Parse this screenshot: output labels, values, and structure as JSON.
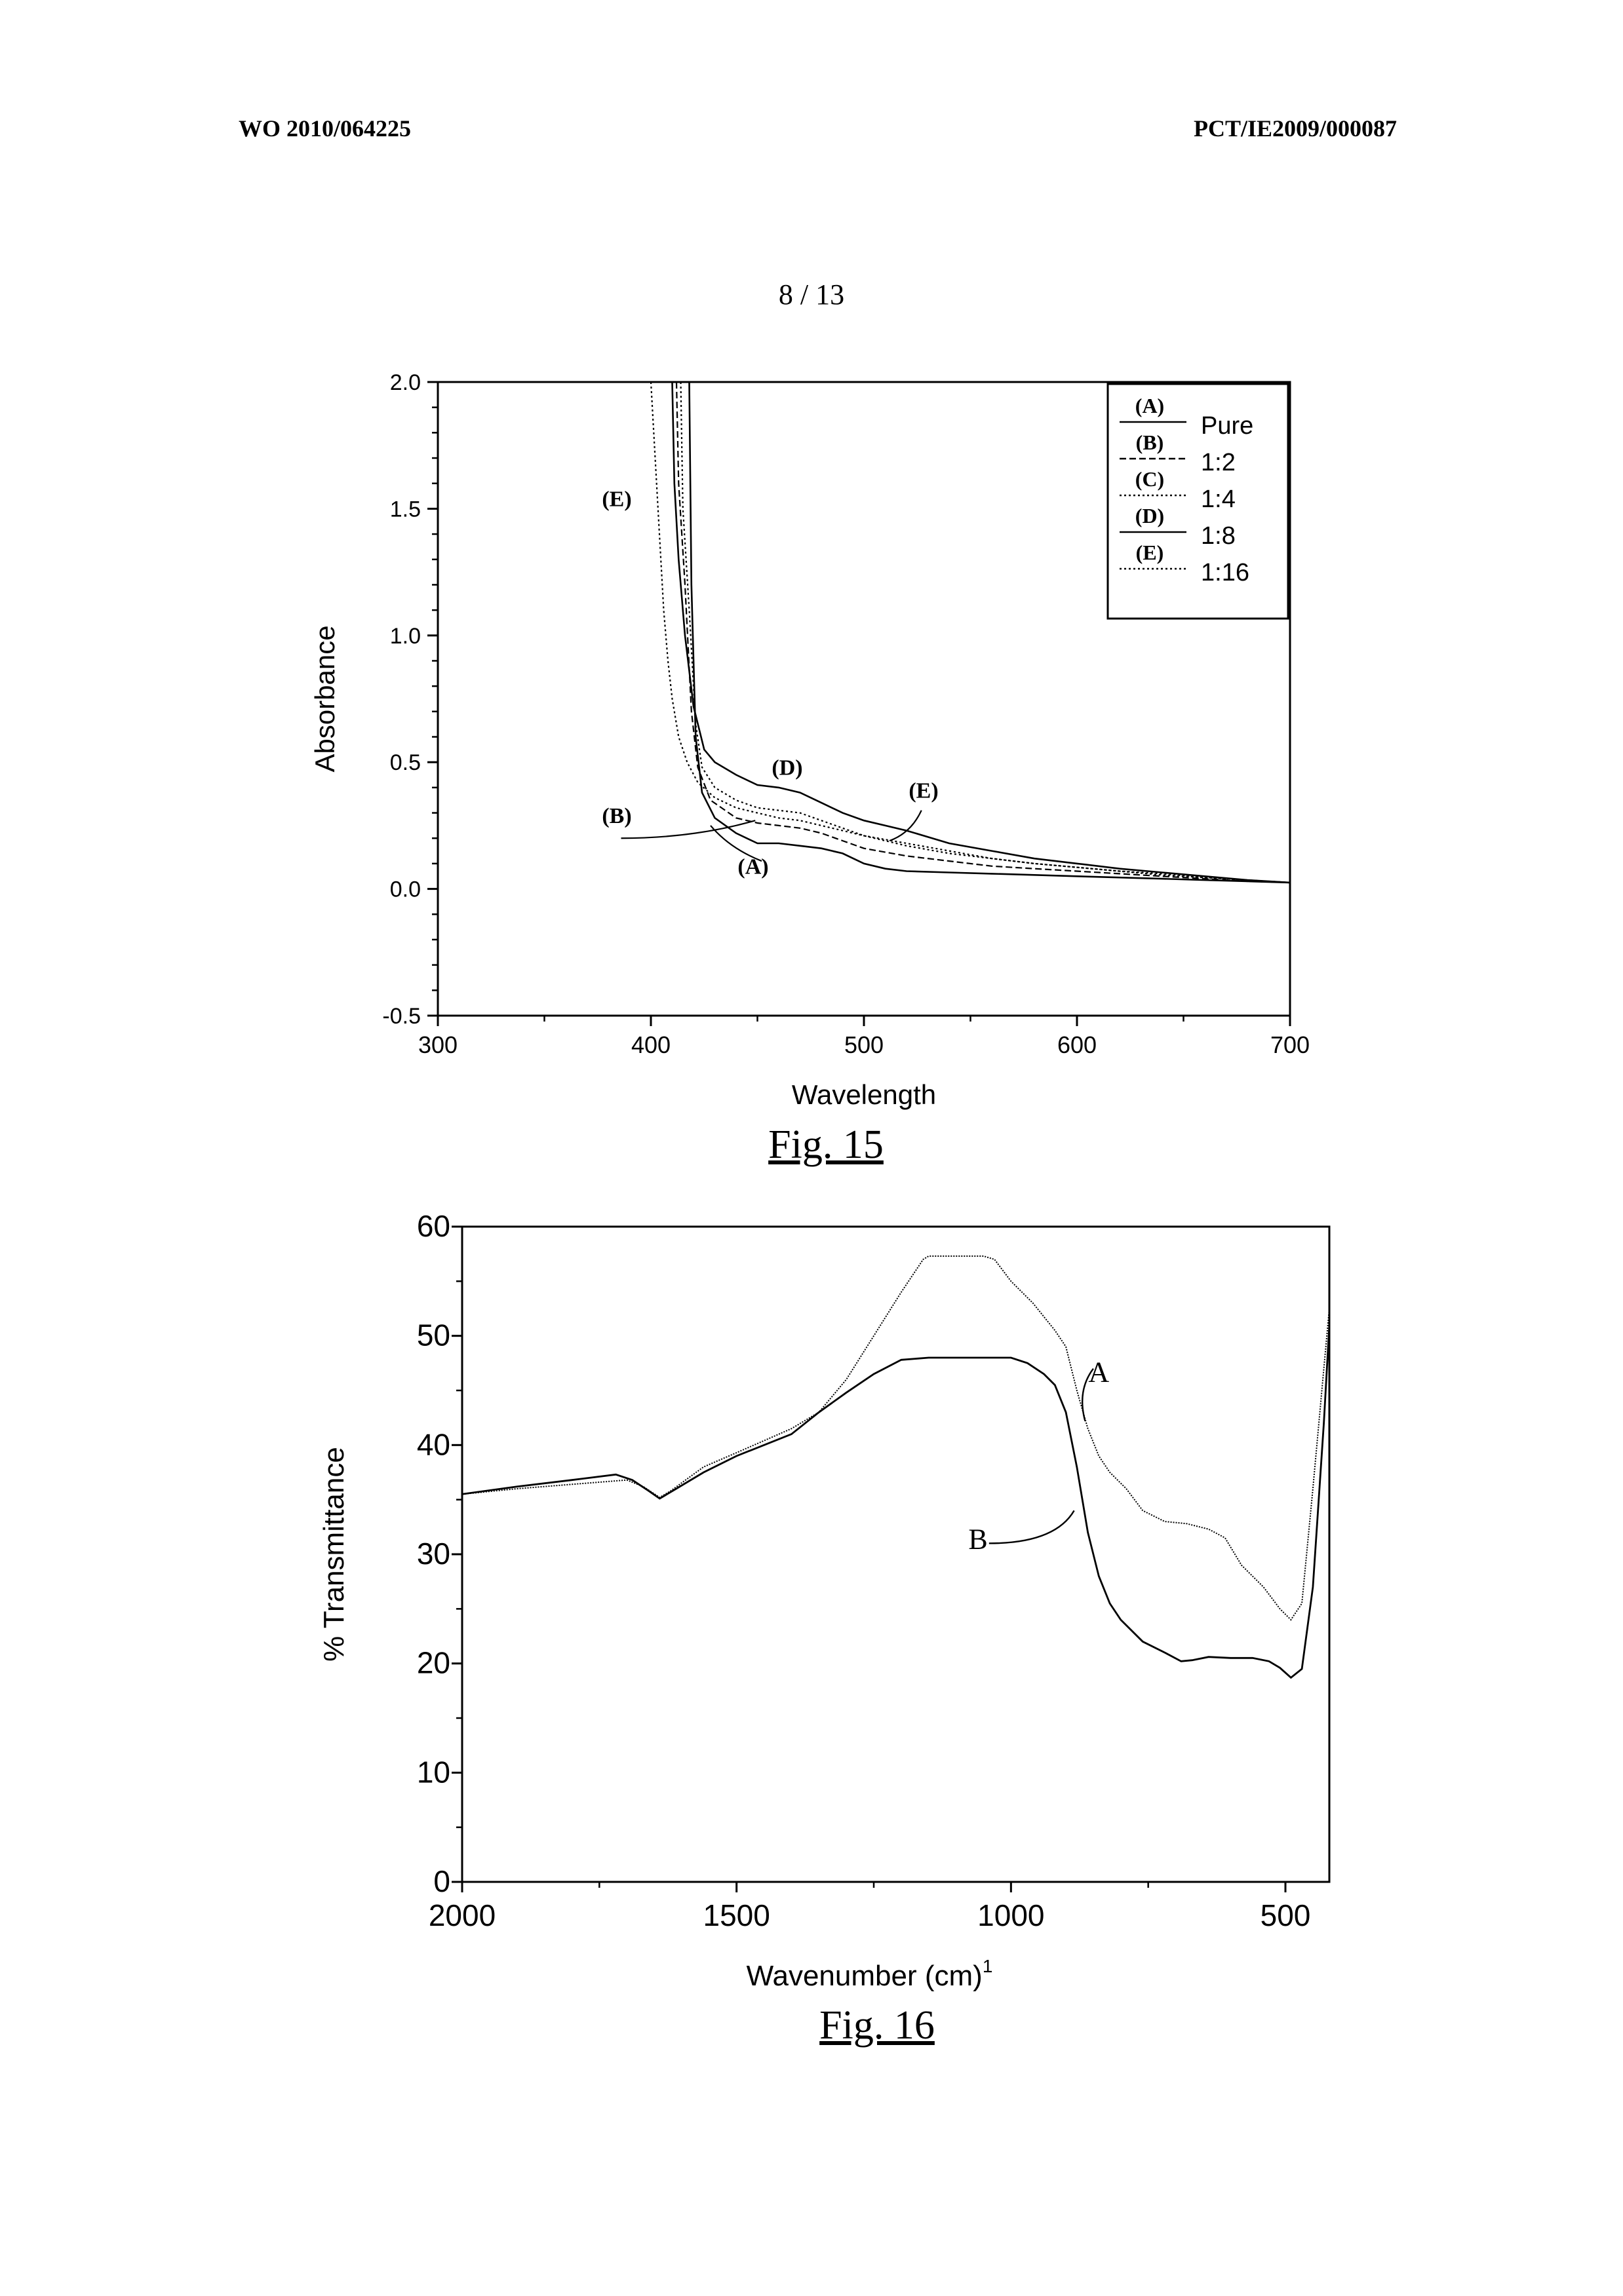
{
  "header": {
    "left": "WO 2010/064225",
    "right": "PCT/IE2009/000087",
    "page_number": "8 / 13"
  },
  "figures": {
    "fig15_caption": "Fig. 15",
    "fig16_caption": "Fig. 16"
  },
  "chart_data": [
    {
      "type": "line",
      "title": "",
      "xlabel": "Wavelength",
      "ylabel": "Absorbance",
      "xlim": [
        300,
        700
      ],
      "ylim": [
        -0.5,
        2.0
      ],
      "x_ticks": [
        "300",
        "400",
        "500",
        "600",
        "700"
      ],
      "y_ticks": [
        "-0.5",
        "0.0",
        "0.5",
        "1.0",
        "1.5",
        "2.0"
      ],
      "legend_position": "top-right",
      "legend": [
        {
          "key": "(A)",
          "label": "Pure",
          "style": "solid"
        },
        {
          "key": "(B)",
          "label": "1:2",
          "style": "dashed"
        },
        {
          "key": "(C)",
          "label": "1:4",
          "style": "dotted"
        },
        {
          "key": "(D)",
          "label": "1:8",
          "style": "solid"
        },
        {
          "key": "(E)",
          "label": "1:16",
          "style": "dotted"
        }
      ],
      "series": [
        {
          "name": "(A)",
          "style": "solid",
          "points": [
            [
              418,
              2.0
            ],
            [
              419,
              1.2
            ],
            [
              421,
              0.6
            ],
            [
              424,
              0.38
            ],
            [
              430,
              0.28
            ],
            [
              440,
              0.22
            ],
            [
              450,
              0.18
            ],
            [
              460,
              0.18
            ],
            [
              470,
              0.17
            ],
            [
              480,
              0.16
            ],
            [
              490,
              0.14
            ],
            [
              500,
              0.1
            ],
            [
              510,
              0.08
            ],
            [
              520,
              0.07
            ],
            [
              540,
              0.065
            ],
            [
              560,
              0.06
            ],
            [
              580,
              0.055
            ],
            [
              600,
              0.05
            ],
            [
              620,
              0.045
            ],
            [
              640,
              0.04
            ],
            [
              660,
              0.035
            ],
            [
              680,
              0.03
            ],
            [
              700,
              0.025
            ]
          ]
        },
        {
          "name": "(B)",
          "style": "dashed",
          "points": [
            [
              412,
              2.0
            ],
            [
              413,
              1.6
            ],
            [
              416,
              1.2
            ],
            [
              419,
              0.7
            ],
            [
              422,
              0.48
            ],
            [
              428,
              0.35
            ],
            [
              440,
              0.28
            ],
            [
              450,
              0.26
            ],
            [
              460,
              0.25
            ],
            [
              470,
              0.24
            ],
            [
              480,
              0.22
            ],
            [
              490,
              0.19
            ],
            [
              500,
              0.16
            ],
            [
              520,
              0.13
            ],
            [
              540,
              0.11
            ],
            [
              560,
              0.09
            ],
            [
              580,
              0.08
            ],
            [
              600,
              0.07
            ],
            [
              620,
              0.06
            ],
            [
              640,
              0.05
            ],
            [
              660,
              0.04
            ],
            [
              680,
              0.03
            ],
            [
              700,
              0.025
            ]
          ]
        },
        {
          "name": "(C)",
          "style": "dotted",
          "points": [
            [
              414,
              2.0
            ],
            [
              415,
              1.5
            ],
            [
              418,
              1.1
            ],
            [
              421,
              0.65
            ],
            [
              424,
              0.48
            ],
            [
              430,
              0.4
            ],
            [
              440,
              0.35
            ],
            [
              450,
              0.32
            ],
            [
              460,
              0.31
            ],
            [
              470,
              0.3
            ],
            [
              480,
              0.27
            ],
            [
              490,
              0.24
            ],
            [
              500,
              0.21
            ],
            [
              520,
              0.17
            ],
            [
              540,
              0.14
            ],
            [
              560,
              0.12
            ],
            [
              580,
              0.1
            ],
            [
              600,
              0.085
            ],
            [
              620,
              0.07
            ],
            [
              640,
              0.06
            ],
            [
              660,
              0.045
            ],
            [
              680,
              0.035
            ],
            [
              700,
              0.025
            ]
          ]
        },
        {
          "name": "(D)",
          "style": "solid",
          "points": [
            [
              410,
              2.0
            ],
            [
              411,
              1.6
            ],
            [
              413,
              1.3
            ],
            [
              416,
              1.0
            ],
            [
              420,
              0.72
            ],
            [
              425,
              0.55
            ],
            [
              430,
              0.5
            ],
            [
              440,
              0.45
            ],
            [
              450,
              0.41
            ],
            [
              460,
              0.4
            ],
            [
              470,
              0.38
            ],
            [
              480,
              0.34
            ],
            [
              490,
              0.3
            ],
            [
              500,
              0.27
            ],
            [
              510,
              0.25
            ],
            [
              520,
              0.23
            ],
            [
              540,
              0.18
            ],
            [
              560,
              0.15
            ],
            [
              580,
              0.12
            ],
            [
              600,
              0.1
            ],
            [
              620,
              0.08
            ],
            [
              640,
              0.065
            ],
            [
              660,
              0.05
            ],
            [
              680,
              0.035
            ],
            [
              700,
              0.025
            ]
          ]
        },
        {
          "name": "(E)",
          "style": "dotted",
          "points": [
            [
              400,
              2.0
            ],
            [
              402,
              1.7
            ],
            [
              404,
              1.4
            ],
            [
              406,
              1.1
            ],
            [
              408,
              0.9
            ],
            [
              410,
              0.75
            ],
            [
              413,
              0.6
            ],
            [
              417,
              0.5
            ],
            [
              422,
              0.42
            ],
            [
              430,
              0.36
            ],
            [
              440,
              0.32
            ],
            [
              450,
              0.3
            ],
            [
              460,
              0.28
            ],
            [
              470,
              0.27
            ],
            [
              480,
              0.25
            ],
            [
              490,
              0.23
            ],
            [
              500,
              0.21
            ],
            [
              520,
              0.18
            ],
            [
              540,
              0.15
            ],
            [
              560,
              0.12
            ],
            [
              580,
              0.1
            ],
            [
              600,
              0.085
            ],
            [
              620,
              0.07
            ],
            [
              640,
              0.055
            ],
            [
              660,
              0.045
            ],
            [
              680,
              0.035
            ],
            [
              700,
              0.025
            ]
          ]
        }
      ],
      "annotations": [
        {
          "text": "(E)",
          "x": 384,
          "y": 1.51
        },
        {
          "text": "(D)",
          "x": 464,
          "y": 0.45
        },
        {
          "text": "(E)",
          "x": 528,
          "y": 0.36
        },
        {
          "text": "(B)",
          "x": 384,
          "y": 0.26
        },
        {
          "text": "(A)",
          "x": 448,
          "y": 0.06
        }
      ]
    },
    {
      "type": "line",
      "title": "",
      "xlabel": "Wavenumber (cm)",
      "xlabel_sup": "1",
      "ylabel": "% Transmittance",
      "xlim": [
        2000,
        420
      ],
      "ylim": [
        0,
        60
      ],
      "x_ticks": [
        "2000",
        "1500",
        "1000",
        "500"
      ],
      "y_ticks": [
        "0",
        "10",
        "20",
        "30",
        "40",
        "50",
        "60"
      ],
      "series": [
        {
          "name": "A",
          "points": [
            [
              2000,
              35.5
            ],
            [
              1900,
              36
            ],
            [
              1800,
              36.4
            ],
            [
              1700,
              36.8
            ],
            [
              1670,
              36.2
            ],
            [
              1640,
              35.2
            ],
            [
              1620,
              35.8
            ],
            [
              1560,
              38
            ],
            [
              1500,
              39.3
            ],
            [
              1400,
              41.5
            ],
            [
              1350,
              43
            ],
            [
              1300,
              46
            ],
            [
              1250,
              50
            ],
            [
              1200,
              54
            ],
            [
              1160,
              57
            ],
            [
              1150,
              57.3
            ],
            [
              1050,
              57.3
            ],
            [
              1030,
              57
            ],
            [
              1000,
              55
            ],
            [
              960,
              53
            ],
            [
              920,
              50.5
            ],
            [
              900,
              49
            ],
            [
              880,
              45
            ],
            [
              860,
              41.5
            ],
            [
              840,
              39
            ],
            [
              820,
              37.5
            ],
            [
              790,
              36
            ],
            [
              760,
              34
            ],
            [
              720,
              33
            ],
            [
              680,
              32.8
            ],
            [
              640,
              32.3
            ],
            [
              610,
              31.5
            ],
            [
              580,
              29
            ],
            [
              540,
              27
            ],
            [
              510,
              25
            ],
            [
              490,
              24
            ],
            [
              470,
              25.5
            ],
            [
              450,
              36
            ],
            [
              430,
              47
            ],
            [
              420,
              52.5
            ]
          ]
        },
        {
          "name": "B",
          "points": [
            [
              2000,
              35.5
            ],
            [
              1900,
              36.2
            ],
            [
              1800,
              36.8
            ],
            [
              1720,
              37.3
            ],
            [
              1690,
              36.8
            ],
            [
              1660,
              35.8
            ],
            [
              1640,
              35.1
            ],
            [
              1610,
              36
            ],
            [
              1560,
              37.5
            ],
            [
              1500,
              39
            ],
            [
              1400,
              41
            ],
            [
              1350,
              43
            ],
            [
              1300,
              44.8
            ],
            [
              1250,
              46.5
            ],
            [
              1200,
              47.8
            ],
            [
              1150,
              48
            ],
            [
              1000,
              48
            ],
            [
              970,
              47.5
            ],
            [
              940,
              46.5
            ],
            [
              920,
              45.5
            ],
            [
              900,
              43
            ],
            [
              880,
              38
            ],
            [
              860,
              32
            ],
            [
              840,
              28
            ],
            [
              820,
              25.5
            ],
            [
              800,
              24
            ],
            [
              760,
              22
            ],
            [
              720,
              21
            ],
            [
              690,
              20.2
            ],
            [
              670,
              20.3
            ],
            [
              640,
              20.6
            ],
            [
              600,
              20.5
            ],
            [
              560,
              20.5
            ],
            [
              530,
              20.2
            ],
            [
              510,
              19.6
            ],
            [
              490,
              18.7
            ],
            [
              470,
              19.5
            ],
            [
              450,
              27
            ],
            [
              430,
              42
            ],
            [
              420,
              51
            ]
          ]
        }
      ],
      "annotations": [
        {
          "text": "A",
          "x": 840,
          "y": 45.8
        },
        {
          "text": "B",
          "x": 1060,
          "y": 30.5
        }
      ]
    }
  ]
}
